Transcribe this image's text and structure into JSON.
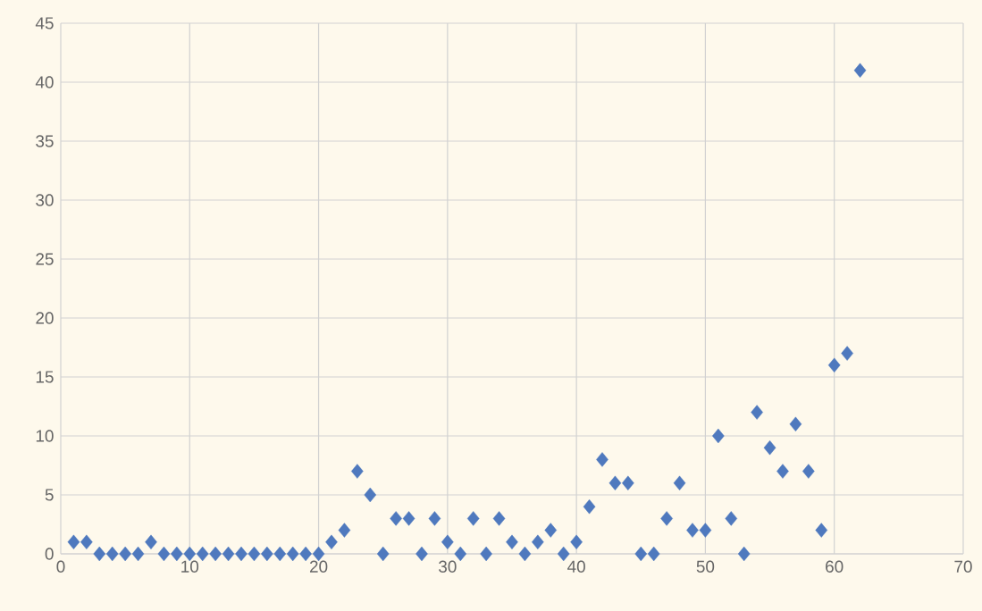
{
  "chart_data": {
    "type": "scatter",
    "x": [
      1,
      2,
      3,
      4,
      5,
      6,
      7,
      8,
      9,
      10,
      11,
      12,
      13,
      14,
      15,
      16,
      17,
      18,
      19,
      20,
      21,
      22,
      23,
      24,
      25,
      26,
      27,
      28,
      29,
      30,
      31,
      32,
      33,
      34,
      35,
      36,
      37,
      38,
      39,
      40,
      41,
      42,
      43,
      44,
      45,
      46,
      47,
      48,
      49,
      50,
      51,
      52,
      53,
      54,
      55,
      56,
      57,
      58,
      59,
      60,
      61,
      62
    ],
    "values": [
      1,
      1,
      0,
      0,
      0,
      0,
      1,
      0,
      0,
      0,
      0,
      0,
      0,
      0,
      0,
      0,
      0,
      0,
      0,
      0,
      1,
      2,
      7,
      5,
      0,
      3,
      3,
      0,
      3,
      1,
      0,
      3,
      0,
      3,
      1,
      0,
      1,
      2,
      0,
      1,
      4,
      8,
      6,
      6,
      0,
      0,
      3,
      6,
      2,
      2,
      10,
      3,
      0,
      12,
      9,
      7,
      11,
      7,
      2,
      16,
      17,
      41
    ],
    "color": "#4f79be",
    "marker": "diamond",
    "grid": true,
    "xlim": [
      0,
      70
    ],
    "xticks": [
      0,
      10,
      20,
      30,
      40,
      50,
      60,
      70
    ],
    "ylim": [
      0,
      45
    ],
    "yticks": [
      0,
      5,
      10,
      15,
      20,
      25,
      30,
      35,
      40,
      45
    ]
  }
}
